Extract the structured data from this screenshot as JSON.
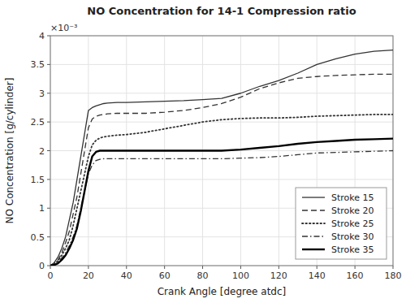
{
  "chart_data": {
    "type": "line",
    "title": "NO Concentration for 14-1 Compression ratio",
    "xlabel": "Crank Angle [degree atdc]",
    "ylabel": "NO Concentration [g/cylinder]",
    "annotations": [
      "×10⁻³"
    ],
    "xlim": [
      0,
      180
    ],
    "ylim": [
      0,
      0.004
    ],
    "xticks": [
      0,
      20,
      40,
      60,
      80,
      100,
      120,
      140,
      160,
      180
    ],
    "yticks": [
      0,
      {
        "value": 0.0005,
        "label": "0.5"
      },
      {
        "value": 0.001,
        "label": "1"
      },
      {
        "value": 0.0015,
        "label": "1.5"
      },
      {
        "value": 0.002,
        "label": "2"
      },
      {
        "value": 0.0025,
        "label": "2.5"
      },
      {
        "value": 0.003,
        "label": "3"
      },
      {
        "value": 0.0035,
        "label": "3.5"
      },
      {
        "value": 0.004,
        "label": "4"
      }
    ],
    "grid": true,
    "legend": "lower right",
    "x": [
      0,
      2,
      4,
      6,
      8,
      10,
      12,
      14,
      16,
      18,
      20,
      22,
      24,
      26,
      28,
      30,
      35,
      40,
      50,
      60,
      70,
      80,
      90,
      100,
      110,
      120,
      130,
      140,
      150,
      160,
      170,
      180
    ],
    "series": [
      {
        "name": "Stroke 15",
        "color": "#333333",
        "line_style": "solid",
        "values": [
          0,
          5e-05,
          0.00015,
          0.0003,
          0.0005,
          0.0008,
          0.0011,
          0.0015,
          0.0019,
          0.0023,
          0.0027,
          0.00275,
          0.00278,
          0.0028,
          0.00282,
          0.00283,
          0.00284,
          0.00284,
          0.00285,
          0.00286,
          0.00287,
          0.00289,
          0.00291,
          0.003,
          0.00312,
          0.00322,
          0.00335,
          0.0035,
          0.0036,
          0.00368,
          0.00373,
          0.00375
        ]
      },
      {
        "name": "Stroke 20",
        "color": "#333333",
        "line_style": "dashed",
        "values": [
          0,
          4e-05,
          0.0001,
          0.00022,
          0.0004,
          0.0006,
          0.0009,
          0.0012,
          0.0016,
          0.002,
          0.0024,
          0.00255,
          0.0026,
          0.00262,
          0.00263,
          0.00264,
          0.00265,
          0.00265,
          0.00265,
          0.00267,
          0.0027,
          0.00275,
          0.00282,
          0.00293,
          0.00308,
          0.00318,
          0.00326,
          0.00329,
          0.00331,
          0.00332,
          0.00333,
          0.00333
        ]
      },
      {
        "name": "Stroke 25",
        "color": "#333333",
        "line_style": "dotted",
        "values": [
          0,
          3e-05,
          8e-05,
          0.00018,
          0.0003,
          0.00045,
          0.0007,
          0.001,
          0.0013,
          0.0016,
          0.0019,
          0.0021,
          0.00218,
          0.00222,
          0.00224,
          0.00225,
          0.00227,
          0.00228,
          0.00232,
          0.00238,
          0.00244,
          0.0025,
          0.00254,
          0.00256,
          0.00257,
          0.00257,
          0.00258,
          0.0026,
          0.00261,
          0.00262,
          0.00263,
          0.00263
        ]
      },
      {
        "name": "Stroke 30",
        "color": "#333333",
        "line_style": "dashdot",
        "values": [
          0,
          2e-05,
          6e-05,
          0.00013,
          0.00022,
          0.00035,
          0.0005,
          0.0007,
          0.001,
          0.0013,
          0.0016,
          0.00175,
          0.00183,
          0.00185,
          0.00186,
          0.00186,
          0.00186,
          0.00186,
          0.00186,
          0.00186,
          0.00186,
          0.00186,
          0.00186,
          0.00187,
          0.00188,
          0.0019,
          0.00193,
          0.00196,
          0.00197,
          0.00198,
          0.00199,
          0.002
        ]
      },
      {
        "name": "Stroke 35",
        "color": "#000000",
        "line_style": "solid",
        "values": [
          0,
          1e-05,
          4e-05,
          0.0001,
          0.00018,
          0.0003,
          0.00045,
          0.00065,
          0.00095,
          0.0013,
          0.00165,
          0.0019,
          0.00198,
          0.002,
          0.002,
          0.002,
          0.002,
          0.002,
          0.002,
          0.002,
          0.002,
          0.002,
          0.002,
          0.00202,
          0.00205,
          0.00208,
          0.00212,
          0.00215,
          0.00217,
          0.00219,
          0.0022,
          0.00221
        ]
      }
    ]
  }
}
